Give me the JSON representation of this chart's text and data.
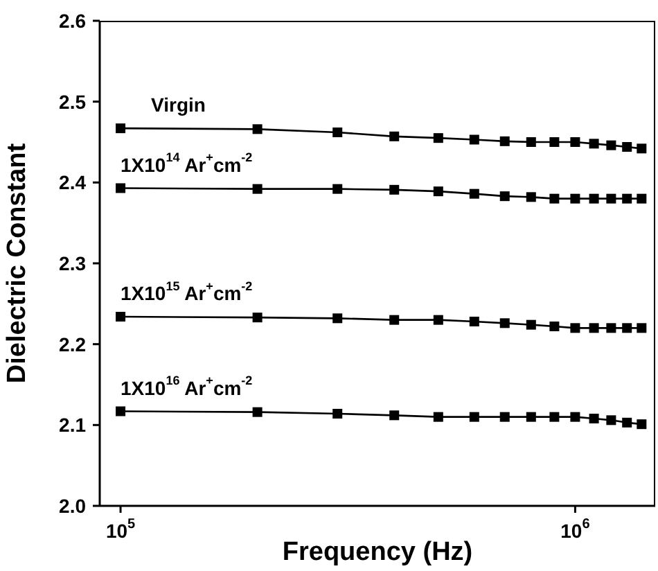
{
  "chart_data": {
    "type": "line",
    "xlabel": "Frequency (Hz)",
    "ylabel": "Dielectric Constant",
    "log": "x",
    "marker": "square",
    "line_style": "solid",
    "x": [
      100000,
      200000,
      300000,
      400000,
      500000,
      600000,
      700000,
      800000,
      900000,
      1000000,
      1100000,
      1200000,
      1300000,
      1400000
    ],
    "xlim": [
      90000,
      1500000
    ],
    "xticks": [
      {
        "value": 100000,
        "label": "10$^{5}$"
      },
      {
        "value": 1000000,
        "label": "10$^{6}$"
      }
    ],
    "ylim": [
      2.0,
      2.6
    ],
    "yticks": [
      {
        "value": 2,
        "label": "2.0"
      },
      2.1,
      2.2,
      2.3,
      2.4,
      2.5,
      2.6
    ],
    "series": [
      {
        "name": "Virgin",
        "color": "#000000",
        "values": [
          2.467,
          2.466,
          2.462,
          2.457,
          2.455,
          2.453,
          2.451,
          2.45,
          2.45,
          2.45,
          2.448,
          2.446,
          2.444,
          2.442
        ]
      },
      {
        "name": "1X10$^{14}$ Ar$^{+}$cm$^{-2}$",
        "color": "#000000",
        "values": [
          2.393,
          2.392,
          2.392,
          2.391,
          2.389,
          2.386,
          2.383,
          2.382,
          2.38,
          2.38,
          2.38,
          2.38,
          2.38,
          2.38
        ]
      },
      {
        "name": "1X10$^{15}$ Ar$^{+}$cm$^{-2}$",
        "color": "#000000",
        "values": [
          2.234,
          2.233,
          2.232,
          2.23,
          2.23,
          2.228,
          2.226,
          2.224,
          2.222,
          2.22,
          2.22,
          2.22,
          2.22,
          2.22
        ]
      },
      {
        "name": "1X10$^{16}$ Ar$^{+}$cm$^{-2}$",
        "color": "#000000",
        "values": [
          2.117,
          2.116,
          2.114,
          2.112,
          2.11,
          2.11,
          2.11,
          2.11,
          2.11,
          2.11,
          2.108,
          2.106,
          2.103,
          2.101
        ]
      }
    ]
  }
}
